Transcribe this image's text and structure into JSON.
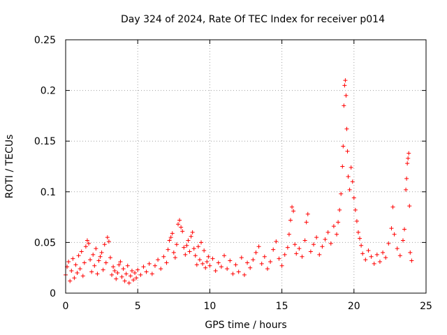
{
  "chart_data": {
    "type": "scatter",
    "title": "Day 324 of 2024, Rate Of TEC Index for receiver p014",
    "xlabel": "GPS time / hours",
    "ylabel": "ROTI / TECUs",
    "xlim": [
      0,
      25
    ],
    "ylim": [
      0,
      0.25
    ],
    "xticks": [
      0,
      5,
      10,
      15,
      20,
      25
    ],
    "yticks": [
      0,
      0.05,
      0.1,
      0.15,
      0.2,
      0.25
    ],
    "xtick_labels": [
      "0",
      "5",
      "10",
      "15",
      "20",
      "25"
    ],
    "ytick_labels": [
      "0",
      "0.05",
      "0.1",
      "0.15",
      "0.2",
      "0.25"
    ],
    "grid": true,
    "marker": "+",
    "color": "#ff0000",
    "series": [
      {
        "name": "ROTI",
        "points": [
          [
            0.0,
            0.018
          ],
          [
            0.1,
            0.026
          ],
          [
            0.2,
            0.031
          ],
          [
            0.3,
            0.012
          ],
          [
            0.4,
            0.022
          ],
          [
            0.5,
            0.034
          ],
          [
            0.6,
            0.015
          ],
          [
            0.7,
            0.028
          ],
          [
            0.8,
            0.02
          ],
          [
            0.9,
            0.037
          ],
          [
            1.0,
            0.024
          ],
          [
            1.1,
            0.041
          ],
          [
            1.2,
            0.017
          ],
          [
            1.3,
            0.03
          ],
          [
            1.4,
            0.046
          ],
          [
            1.5,
            0.052
          ],
          [
            1.6,
            0.049
          ],
          [
            1.7,
            0.033
          ],
          [
            1.8,
            0.021
          ],
          [
            1.9,
            0.038
          ],
          [
            2.0,
            0.027
          ],
          [
            2.1,
            0.044
          ],
          [
            2.2,
            0.019
          ],
          [
            2.3,
            0.032
          ],
          [
            2.4,
            0.036
          ],
          [
            2.5,
            0.04
          ],
          [
            2.6,
            0.023
          ],
          [
            2.7,
            0.048
          ],
          [
            2.8,
            0.03
          ],
          [
            2.9,
            0.055
          ],
          [
            3.0,
            0.051
          ],
          [
            3.1,
            0.035
          ],
          [
            3.2,
            0.018
          ],
          [
            3.3,
            0.026
          ],
          [
            3.4,
            0.022
          ],
          [
            3.5,
            0.014
          ],
          [
            3.6,
            0.02
          ],
          [
            3.7,
            0.028
          ],
          [
            3.8,
            0.031
          ],
          [
            3.9,
            0.016
          ],
          [
            4.0,
            0.024
          ],
          [
            4.1,
            0.012
          ],
          [
            4.2,
            0.019
          ],
          [
            4.3,
            0.027
          ],
          [
            4.4,
            0.01
          ],
          [
            4.5,
            0.017
          ],
          [
            4.6,
            0.022
          ],
          [
            4.7,
            0.013
          ],
          [
            4.8,
            0.02
          ],
          [
            4.9,
            0.015
          ],
          [
            5.0,
            0.023
          ],
          [
            5.2,
            0.018
          ],
          [
            5.4,
            0.026
          ],
          [
            5.6,
            0.021
          ],
          [
            5.8,
            0.029
          ],
          [
            6.0,
            0.019
          ],
          [
            6.2,
            0.027
          ],
          [
            6.4,
            0.033
          ],
          [
            6.6,
            0.024
          ],
          [
            6.8,
            0.036
          ],
          [
            7.0,
            0.03
          ],
          [
            7.1,
            0.043
          ],
          [
            7.2,
            0.052
          ],
          [
            7.3,
            0.055
          ],
          [
            7.4,
            0.059
          ],
          [
            7.5,
            0.04
          ],
          [
            7.6,
            0.035
          ],
          [
            7.7,
            0.048
          ],
          [
            7.8,
            0.068
          ],
          [
            7.9,
            0.072
          ],
          [
            8.0,
            0.065
          ],
          [
            8.1,
            0.061
          ],
          [
            8.2,
            0.045
          ],
          [
            8.3,
            0.038
          ],
          [
            8.4,
            0.047
          ],
          [
            8.5,
            0.052
          ],
          [
            8.6,
            0.041
          ],
          [
            8.7,
            0.056
          ],
          [
            8.8,
            0.06
          ],
          [
            8.9,
            0.044
          ],
          [
            9.0,
            0.037
          ],
          [
            9.1,
            0.028
          ],
          [
            9.2,
            0.046
          ],
          [
            9.3,
            0.033
          ],
          [
            9.4,
            0.05
          ],
          [
            9.5,
            0.029
          ],
          [
            9.6,
            0.042
          ],
          [
            9.7,
            0.025
          ],
          [
            9.8,
            0.031
          ],
          [
            9.9,
            0.036
          ],
          [
            10.0,
            0.027
          ],
          [
            10.2,
            0.034
          ],
          [
            10.4,
            0.022
          ],
          [
            10.6,
            0.03
          ],
          [
            10.8,
            0.026
          ],
          [
            11.0,
            0.037
          ],
          [
            11.2,
            0.024
          ],
          [
            11.4,
            0.032
          ],
          [
            11.6,
            0.019
          ],
          [
            11.8,
            0.028
          ],
          [
            12.0,
            0.021
          ],
          [
            12.2,
            0.035
          ],
          [
            12.4,
            0.018
          ],
          [
            12.6,
            0.03
          ],
          [
            12.8,
            0.025
          ],
          [
            13.0,
            0.033
          ],
          [
            13.2,
            0.04
          ],
          [
            13.4,
            0.046
          ],
          [
            13.6,
            0.029
          ],
          [
            13.8,
            0.036
          ],
          [
            14.0,
            0.024
          ],
          [
            14.2,
            0.031
          ],
          [
            14.4,
            0.043
          ],
          [
            14.6,
            0.051
          ],
          [
            14.8,
            0.034
          ],
          [
            15.0,
            0.027
          ],
          [
            15.2,
            0.038
          ],
          [
            15.4,
            0.045
          ],
          [
            15.5,
            0.058
          ],
          [
            15.6,
            0.072
          ],
          [
            15.7,
            0.085
          ],
          [
            15.8,
            0.081
          ],
          [
            15.9,
            0.048
          ],
          [
            16.0,
            0.039
          ],
          [
            16.2,
            0.044
          ],
          [
            16.4,
            0.036
          ],
          [
            16.6,
            0.052
          ],
          [
            16.7,
            0.07
          ],
          [
            16.8,
            0.078
          ],
          [
            17.0,
            0.041
          ],
          [
            17.2,
            0.048
          ],
          [
            17.4,
            0.055
          ],
          [
            17.6,
            0.038
          ],
          [
            17.8,
            0.046
          ],
          [
            18.0,
            0.053
          ],
          [
            18.2,
            0.06
          ],
          [
            18.4,
            0.049
          ],
          [
            18.6,
            0.066
          ],
          [
            18.8,
            0.058
          ],
          [
            18.9,
            0.07
          ],
          [
            19.0,
            0.082
          ],
          [
            19.1,
            0.098
          ],
          [
            19.2,
            0.125
          ],
          [
            19.25,
            0.145
          ],
          [
            19.3,
            0.185
          ],
          [
            19.35,
            0.205
          ],
          [
            19.4,
            0.21
          ],
          [
            19.45,
            0.195
          ],
          [
            19.5,
            0.162
          ],
          [
            19.55,
            0.14
          ],
          [
            19.6,
            0.115
          ],
          [
            19.7,
            0.102
          ],
          [
            19.8,
            0.124
          ],
          [
            19.9,
            0.11
          ],
          [
            20.0,
            0.094
          ],
          [
            20.1,
            0.082
          ],
          [
            20.2,
            0.071
          ],
          [
            20.3,
            0.06
          ],
          [
            20.4,
            0.054
          ],
          [
            20.5,
            0.047
          ],
          [
            20.6,
            0.039
          ],
          [
            20.8,
            0.033
          ],
          [
            21.0,
            0.042
          ],
          [
            21.2,
            0.036
          ],
          [
            21.4,
            0.029
          ],
          [
            21.6,
            0.038
          ],
          [
            21.8,
            0.031
          ],
          [
            22.0,
            0.04
          ],
          [
            22.2,
            0.035
          ],
          [
            22.4,
            0.049
          ],
          [
            22.6,
            0.064
          ],
          [
            22.7,
            0.085
          ],
          [
            22.8,
            0.058
          ],
          [
            23.0,
            0.044
          ],
          [
            23.2,
            0.037
          ],
          [
            23.4,
            0.052
          ],
          [
            23.5,
            0.063
          ],
          [
            23.6,
            0.102
          ],
          [
            23.65,
            0.113
          ],
          [
            23.7,
            0.128
          ],
          [
            23.75,
            0.133
          ],
          [
            23.8,
            0.138
          ],
          [
            23.85,
            0.086
          ],
          [
            23.9,
            0.04
          ],
          [
            24.0,
            0.032
          ]
        ]
      }
    ]
  }
}
